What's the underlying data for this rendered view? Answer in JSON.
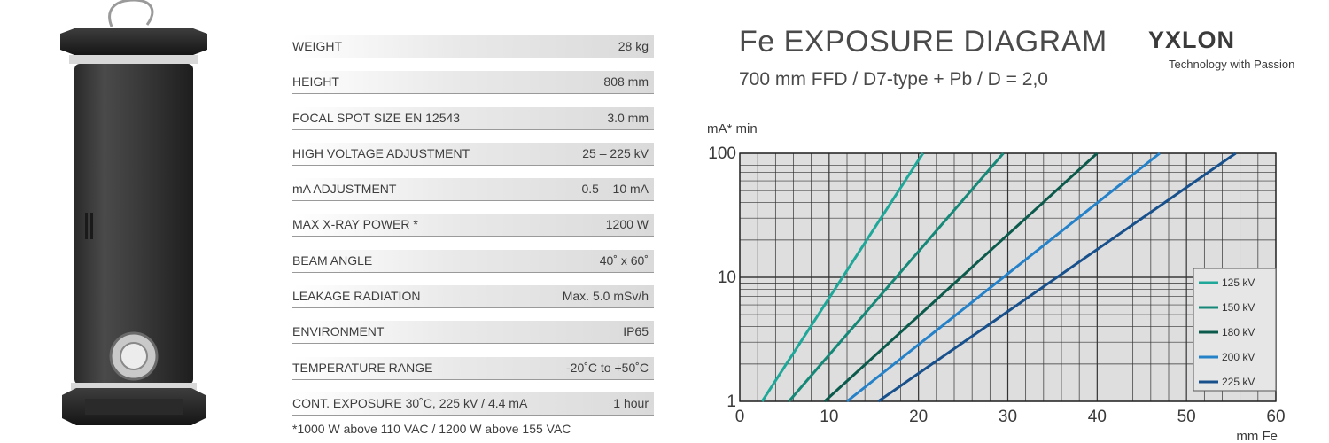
{
  "specs": [
    {
      "label": "WEIGHT",
      "value": "28 kg"
    },
    {
      "label": "HEIGHT",
      "value": "808 mm"
    },
    {
      "label": "FOCAL SPOT SIZE EN 12543",
      "value": "3.0 mm"
    },
    {
      "label": "HIGH VOLTAGE ADJUSTMENT",
      "value": "25 – 225 kV"
    },
    {
      "label": "mA ADJUSTMENT",
      "value": "0.5 – 10 mA"
    },
    {
      "label": "MAX X-RAY POWER *",
      "value": "1200 W"
    },
    {
      "label": "BEAM ANGLE",
      "value": "40˚ x 60˚"
    },
    {
      "label": "LEAKAGE RADIATION",
      "value": "Max. 5.0 mSv/h"
    },
    {
      "label": "ENVIRONMENT",
      "value": "IP65"
    },
    {
      "label": "TEMPERATURE RANGE",
      "value": "-20˚C to +50˚C"
    },
    {
      "label": "CONT. EXPOSURE  30˚C, 225 kV / 4.4 mA",
      "value": "1 hour"
    }
  ],
  "footnote": "*1000 W above 110 VAC / 1200 W above 155 VAC",
  "brand": {
    "logo": "YXLON",
    "tagline": "Technology with Passion"
  },
  "chart_data": {
    "type": "line",
    "title": "Fe EXPOSURE DIAGRAM",
    "subtitle": "700 mm FFD / D7-type + Pb / D = 2,0",
    "xlabel": "mm Fe",
    "ylabel": "mA* min",
    "xlim": [
      0,
      60
    ],
    "ylim": [
      1,
      100
    ],
    "yscale": "log",
    "x_ticks": [
      "0",
      "10",
      "20",
      "30",
      "40",
      "50",
      "60"
    ],
    "y_ticks": [
      "1",
      "10",
      "100"
    ],
    "grid": true,
    "legend_position": "bottom-right",
    "series": [
      {
        "name": "125 kV",
        "color": "#1fa89a",
        "x": [
          2.5,
          20.5
        ],
        "y": [
          1,
          100
        ]
      },
      {
        "name": "150 kV",
        "color": "#168878",
        "x": [
          5.5,
          29.5
        ],
        "y": [
          1,
          100
        ]
      },
      {
        "name": "180 kV",
        "color": "#0c5a4c",
        "x": [
          9.5,
          40.0
        ],
        "y": [
          1,
          100
        ]
      },
      {
        "name": "200 kV",
        "color": "#2581c8",
        "x": [
          12.0,
          47.0
        ],
        "y": [
          1,
          100
        ]
      },
      {
        "name": "225 kV",
        "color": "#18508c",
        "x": [
          15.5,
          55.5
        ],
        "y": [
          1,
          100
        ]
      }
    ]
  }
}
